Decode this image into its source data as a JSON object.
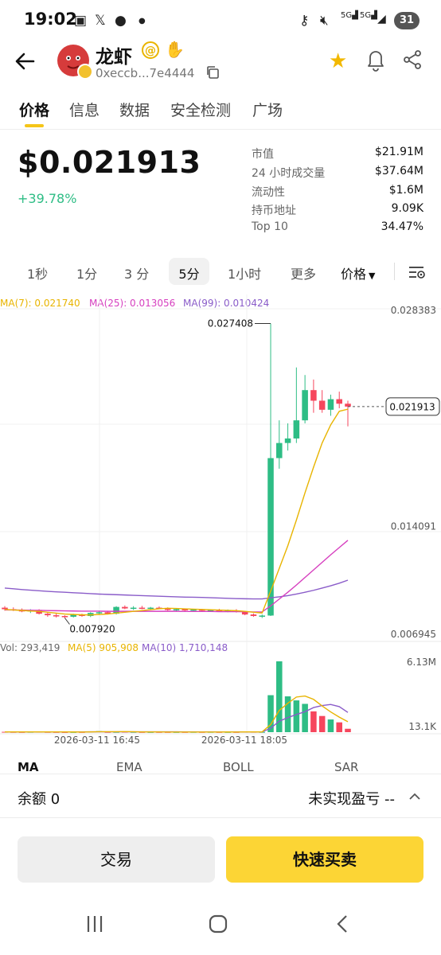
{
  "status_bar": {
    "time": "19:02",
    "icons": [
      "screenshot-icon",
      "x-icon",
      "wechat-icon",
      "dot-icon",
      "key-icon",
      "mute-icon",
      "signal-5g-icon",
      "signal-5g-icon",
      "wifi-signal-icon"
    ],
    "battery": "31"
  },
  "header": {
    "title": "龙虾",
    "address": "0xeccb...7e4444",
    "at_badge": "@",
    "icons": [
      "back-arrow-icon",
      "copy-icon",
      "star-icon",
      "bell-icon",
      "share-icon"
    ]
  },
  "tabs": [
    "价格",
    "信息",
    "数据",
    "安全检测",
    "广场"
  ],
  "price": {
    "value": "$0.021913",
    "change": "+39.78%"
  },
  "stats": [
    {
      "label": "市值",
      "value": "$21.91M"
    },
    {
      "label": "24 小时成交量",
      "value": "$37.64M"
    },
    {
      "label": "流动性",
      "value": "$1.6M"
    },
    {
      "label": "持币地址",
      "value": "9.09K"
    },
    {
      "label": "Top 10",
      "value": "34.47%"
    }
  ],
  "intervals": [
    "1秒",
    "1分",
    "3 分",
    "5分",
    "1小时",
    "更多"
  ],
  "interval_selected": "5分",
  "price_mode": "价格",
  "ma_legend": {
    "ma7": "MA(7): 0.021740",
    "ma25": "MA(25): 0.013056",
    "ma99": "MA(99): 0.010424"
  },
  "vol_legend": {
    "vol": "Vol: 293,419",
    "ma5": "MA(5) 905,908",
    "ma10": "MA(10) 1,710,148"
  },
  "colors": {
    "up": "#2ebd85",
    "down": "#f6465d",
    "ma7": "#e8b400",
    "ma25": "#d63fbf",
    "ma99": "#8a5cc9",
    "accent": "#fcd535"
  },
  "chart_data": {
    "type": "candlestick",
    "y_axis_labels": [
      "0.028383",
      "0.014091",
      "0.006945"
    ],
    "ylim": [
      0.006945,
      0.028383
    ],
    "high_marker": "0.027408",
    "low_marker": "0.007920",
    "current_price_label": "0.021913",
    "x_labels": [
      "2026-03-11 16:45",
      "2026-03-11 18:05"
    ],
    "candles": [
      {
        "o": 0.0086,
        "h": 0.0087,
        "l": 0.0084,
        "c": 0.0085
      },
      {
        "o": 0.0085,
        "h": 0.00862,
        "l": 0.00838,
        "c": 0.00845
      },
      {
        "o": 0.00845,
        "h": 0.00855,
        "l": 0.0083,
        "c": 0.00835
      },
      {
        "o": 0.00835,
        "h": 0.0085,
        "l": 0.00825,
        "c": 0.00845
      },
      {
        "o": 0.00845,
        "h": 0.0085,
        "l": 0.00815,
        "c": 0.0082
      },
      {
        "o": 0.0082,
        "h": 0.0083,
        "l": 0.008,
        "c": 0.0081
      },
      {
        "o": 0.0081,
        "h": 0.00825,
        "l": 0.00795,
        "c": 0.00805
      },
      {
        "o": 0.00805,
        "h": 0.0081,
        "l": 0.00792,
        "c": 0.008
      },
      {
        "o": 0.008,
        "h": 0.0082,
        "l": 0.00795,
        "c": 0.00815
      },
      {
        "o": 0.00815,
        "h": 0.0082,
        "l": 0.008,
        "c": 0.00805
      },
      {
        "o": 0.00805,
        "h": 0.0083,
        "l": 0.00798,
        "c": 0.00825
      },
      {
        "o": 0.00825,
        "h": 0.0084,
        "l": 0.00818,
        "c": 0.0083
      },
      {
        "o": 0.0083,
        "h": 0.0084,
        "l": 0.00815,
        "c": 0.0082
      },
      {
        "o": 0.0082,
        "h": 0.0087,
        "l": 0.00815,
        "c": 0.00865
      },
      {
        "o": 0.00865,
        "h": 0.00875,
        "l": 0.0085,
        "c": 0.00855
      },
      {
        "o": 0.00855,
        "h": 0.0087,
        "l": 0.00845,
        "c": 0.0086
      },
      {
        "o": 0.0086,
        "h": 0.00872,
        "l": 0.0085,
        "c": 0.00855
      },
      {
        "o": 0.00855,
        "h": 0.00865,
        "l": 0.00848,
        "c": 0.0086
      },
      {
        "o": 0.0086,
        "h": 0.00868,
        "l": 0.0085,
        "c": 0.00855
      },
      {
        "o": 0.00855,
        "h": 0.00862,
        "l": 0.0084,
        "c": 0.00845
      },
      {
        "o": 0.00845,
        "h": 0.00855,
        "l": 0.00838,
        "c": 0.0085
      },
      {
        "o": 0.0085,
        "h": 0.00855,
        "l": 0.00838,
        "c": 0.00842
      },
      {
        "o": 0.00842,
        "h": 0.00852,
        "l": 0.00838,
        "c": 0.00848
      },
      {
        "o": 0.00848,
        "h": 0.00852,
        "l": 0.00835,
        "c": 0.0084
      },
      {
        "o": 0.0084,
        "h": 0.0085,
        "l": 0.00835,
        "c": 0.00845
      },
      {
        "o": 0.00845,
        "h": 0.00852,
        "l": 0.00832,
        "c": 0.00838
      },
      {
        "o": 0.00838,
        "h": 0.00848,
        "l": 0.0083,
        "c": 0.00842
      },
      {
        "o": 0.00842,
        "h": 0.0085,
        "l": 0.00828,
        "c": 0.00832
      },
      {
        "o": 0.00832,
        "h": 0.00838,
        "l": 0.0081,
        "c": 0.00815
      },
      {
        "o": 0.00815,
        "h": 0.00822,
        "l": 0.008,
        "c": 0.00805
      },
      {
        "o": 0.00805,
        "h": 0.00815,
        "l": 0.00792,
        "c": 0.00808
      },
      {
        "o": 0.00808,
        "h": 0.02741,
        "l": 0.00805,
        "c": 0.0185
      },
      {
        "o": 0.0185,
        "h": 0.021,
        "l": 0.0178,
        "c": 0.0195
      },
      {
        "o": 0.0195,
        "h": 0.0208,
        "l": 0.019,
        "c": 0.0198
      },
      {
        "o": 0.0198,
        "h": 0.0245,
        "l": 0.0195,
        "c": 0.021
      },
      {
        "o": 0.021,
        "h": 0.024,
        "l": 0.0208,
        "c": 0.023
      },
      {
        "o": 0.023,
        "h": 0.0237,
        "l": 0.0215,
        "c": 0.0223
      },
      {
        "o": 0.0223,
        "h": 0.023,
        "l": 0.0215,
        "c": 0.0217
      },
      {
        "o": 0.0217,
        "h": 0.0227,
        "l": 0.0213,
        "c": 0.0224
      },
      {
        "o": 0.0224,
        "h": 0.0229,
        "l": 0.0218,
        "c": 0.0221
      },
      {
        "o": 0.0221,
        "h": 0.0223,
        "l": 0.0206,
        "c": 0.02191
      }
    ],
    "ma7": [
      0.00848,
      0.00845,
      0.00842,
      0.00838,
      0.00836,
      0.0083,
      0.00824,
      0.00818,
      0.00815,
      0.00813,
      0.00812,
      0.00815,
      0.00818,
      0.00824,
      0.0083,
      0.00836,
      0.00841,
      0.00847,
      0.00853,
      0.00856,
      0.00855,
      0.00852,
      0.0085,
      0.00848,
      0.00846,
      0.00844,
      0.00842,
      0.0084,
      0.00836,
      0.0083,
      0.00825,
      0.0097,
      0.0112,
      0.0127,
      0.0144,
      0.0162,
      0.0179,
      0.0195,
      0.0207,
      0.0216,
      0.02174
    ],
    "ma25": [
      0.00845,
      0.00845,
      0.00844,
      0.00843,
      0.00842,
      0.00841,
      0.0084,
      0.00839,
      0.00838,
      0.00837,
      0.00837,
      0.00837,
      0.00836,
      0.00836,
      0.00836,
      0.00836,
      0.00836,
      0.00836,
      0.00836,
      0.00836,
      0.00836,
      0.00835,
      0.00835,
      0.00835,
      0.00835,
      0.00834,
      0.00834,
      0.00834,
      0.00833,
      0.00832,
      0.00832,
      0.00872,
      0.00917,
      0.00962,
      0.0101,
      0.0106,
      0.0111,
      0.0116,
      0.0121,
      0.01258,
      0.01306
    ],
    "ma99": [
      0.0099,
      0.00985,
      0.0098,
      0.00976,
      0.00972,
      0.00968,
      0.00965,
      0.00962,
      0.00959,
      0.00956,
      0.00953,
      0.0095,
      0.00948,
      0.00946,
      0.00944,
      0.00942,
      0.0094,
      0.00938,
      0.00936,
      0.00934,
      0.00932,
      0.0093,
      0.00929,
      0.00928,
      0.00926,
      0.00924,
      0.00922,
      0.0092,
      0.00919,
      0.00918,
      0.00918,
      0.00925,
      0.00932,
      0.0094,
      0.0095,
      0.00962,
      0.00975,
      0.0099,
      0.01005,
      0.01022,
      0.01042
    ],
    "volume": {
      "ylim": [
        0,
        6130000
      ],
      "labels": [
        "6.13M",
        "13.1K"
      ],
      "bars": [
        30000,
        20000,
        15000,
        25000,
        40000,
        20000,
        15000,
        10000,
        12000,
        14000,
        60000,
        90000,
        20000,
        20000,
        35000,
        20000,
        15000,
        12000,
        16000,
        14000,
        12000,
        15000,
        18000,
        16000,
        20000,
        15000,
        14000,
        15000,
        40000,
        30000,
        20000,
        3200000,
        6130000,
        3100000,
        2750000,
        2450000,
        1800000,
        1400000,
        1100000,
        850000,
        293419
      ],
      "ma5": [
        20000,
        20000,
        20000,
        22000,
        24000,
        23000,
        22000,
        21000,
        18000,
        14000,
        22000,
        37000,
        41000,
        42000,
        46000,
        37000,
        22000,
        20000,
        19000,
        15000,
        14000,
        14000,
        15000,
        16000,
        16000,
        16000,
        17000,
        16000,
        21000,
        24000,
        24000,
        660000,
        1880000,
        2500000,
        3040000,
        3130000,
        2840000,
        2270000,
        1750000,
        1300000,
        905908
      ],
      "ma10": [
        20000,
        20000,
        20000,
        20000,
        21000,
        21000,
        21000,
        21000,
        21000,
        21000,
        26000,
        29000,
        30000,
        31000,
        33000,
        33000,
        33000,
        33000,
        33000,
        32000,
        25000,
        17000,
        17000,
        16000,
        17000,
        16000,
        16000,
        17000,
        19000,
        20000,
        20000,
        340000,
        950000,
        1260000,
        1530000,
        1770000,
        2130000,
        2300000,
        2400000,
        2210000,
        1710148
      ]
    },
    "x": [
      "2026-03-11 16:45",
      "2026-03-11 18:05"
    ]
  },
  "indicator_tabs": [
    "MA",
    "EMA",
    "BOLL",
    "SAR"
  ],
  "indicator_selected": "MA",
  "bottom": {
    "balance": "余额 0",
    "unrealized": "未实现盈亏 --",
    "trade_btn": "交易",
    "quick_btn": "快速买卖"
  },
  "navbar_icons": [
    "recent-apps-icon",
    "home-icon",
    "back-icon"
  ]
}
